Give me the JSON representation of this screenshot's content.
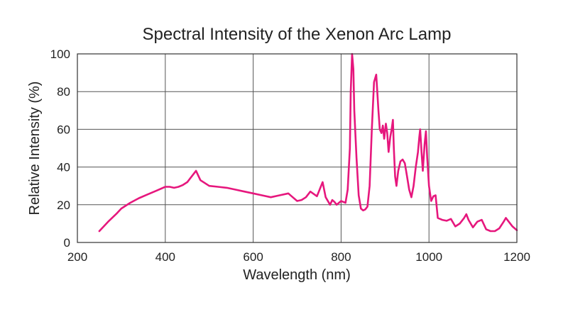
{
  "chart_data": {
    "type": "line",
    "title": "Spectral Intensity of the Xenon Arc Lamp",
    "xlabel": "Wavelength (nm)",
    "ylabel": "Relative Intensity (%)",
    "xlim": [
      200,
      1200
    ],
    "ylim": [
      0,
      100
    ],
    "xticks": [
      200,
      400,
      600,
      800,
      1000,
      1200
    ],
    "yticks": [
      0,
      20,
      40,
      60,
      80,
      100
    ],
    "xtick_labels": [
      "200",
      "400",
      "600",
      "800",
      "1000",
      "1200"
    ],
    "ytick_labels": [
      "0",
      "20",
      "40",
      "60",
      "80",
      "100"
    ],
    "grid": true,
    "legend": false,
    "series": [
      {
        "color": "#e6177d",
        "x": [
          250,
          270,
          290,
          300,
          320,
          340,
          360,
          380,
          400,
          410,
          420,
          430,
          440,
          450,
          460,
          470,
          480,
          500,
          520,
          540,
          560,
          580,
          600,
          620,
          640,
          660,
          680,
          690,
          700,
          710,
          720,
          730,
          745,
          758,
          765,
          775,
          780,
          785,
          790,
          800,
          810,
          815,
          820,
          822,
          825,
          828,
          830,
          835,
          840,
          845,
          850,
          855,
          860,
          865,
          870,
          875,
          880,
          885,
          888,
          892,
          895,
          898,
          902,
          905,
          908,
          912,
          915,
          918,
          920,
          923,
          926,
          930,
          935,
          940,
          945,
          950,
          955,
          960,
          965,
          970,
          975,
          978,
          980,
          983,
          986,
          990,
          993,
          996,
          1000,
          1005,
          1010,
          1015,
          1020,
          1030,
          1040,
          1050,
          1060,
          1070,
          1080,
          1085,
          1090,
          1100,
          1110,
          1120,
          1130,
          1140,
          1150,
          1160,
          1170,
          1175,
          1180,
          1190,
          1200
        ],
        "y": [
          6,
          11,
          15.5,
          18,
          21,
          23.5,
          25.5,
          27.5,
          29.5,
          29.5,
          29,
          29.5,
          30.5,
          32,
          35,
          38,
          33,
          30,
          29.5,
          29,
          28,
          27,
          26,
          25,
          24,
          25,
          26,
          24,
          22,
          22.5,
          24,
          27,
          24.5,
          32,
          24,
          20,
          22.5,
          21.5,
          20,
          22,
          21,
          28,
          50,
          80,
          100,
          92,
          70,
          45,
          25,
          18,
          17,
          17.5,
          19,
          30,
          60,
          85,
          89,
          70,
          60,
          58,
          62,
          55,
          63,
          58,
          48,
          56,
          60,
          65,
          50,
          35,
          30,
          38,
          43,
          44,
          42,
          35,
          28,
          24,
          30,
          40,
          48,
          56,
          60,
          48,
          38,
          52,
          59,
          45,
          30,
          22,
          24.5,
          25,
          13,
          12,
          11.5,
          12.5,
          8.5,
          10,
          13,
          15,
          12,
          8,
          11,
          12,
          7,
          6,
          6,
          7.5,
          11,
          13,
          11.5,
          8.5,
          6.5
        ]
      }
    ]
  }
}
